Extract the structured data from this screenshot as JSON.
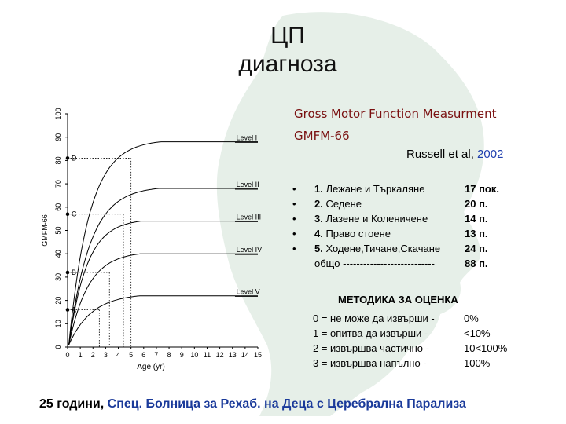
{
  "slide": {
    "title_line1": "ЦП",
    "title_line2": "диагноза",
    "gmfm_line1": "Gross Motor Function Measurment",
    "gmfm_line2": "GMFM-66",
    "ref_author": "Russell et al, ",
    "ref_year": "2002",
    "items": [
      {
        "bullet": "•",
        "num": "1.",
        "text": " Лежане и Търкаляне",
        "points": "17 пок."
      },
      {
        "bullet": "•",
        "num": "2.",
        "text": " Седене",
        "points": "20 п."
      },
      {
        "bullet": "•",
        "num": "3.",
        "text": " Лазене и Коленичене",
        "points": "14 п."
      },
      {
        "bullet": "•",
        "num": "4.",
        "text": " Право стоене",
        "points": "13 п."
      },
      {
        "bullet": "•",
        "num": "5.",
        "text": " Ходене,Тичане,Скачане",
        "points": "24 п."
      }
    ],
    "total_label": "общо ---------------------------",
    "total_points": "88 п.",
    "method_title": "МЕТОДИКА ЗА ОЦЕНКА",
    "method_rows": [
      {
        "desc": "0 = не може да извърши -",
        "val": "0%"
      },
      {
        "desc": "1 = опитва да извърши  -",
        "val": "<10%"
      },
      {
        "desc": "2 = извършва частично  -",
        "val": "10<100%"
      },
      {
        "desc": "3 = извършва напълно   -",
        "val": "100%"
      }
    ],
    "footer_age": "25 години,",
    "footer_inst": "  Спец. Болница за Рехаб. на Деца с Церебрална Парализа",
    "bg_color": "#e6efe8"
  },
  "chart_data": {
    "type": "line",
    "ylabel": "GMFM-66",
    "xlabel": "Age (yr)",
    "xlim": [
      0,
      15
    ],
    "ylim": [
      0,
      100
    ],
    "x_ticks": [
      "0",
      "1",
      "2",
      "3",
      "4",
      "5",
      "6",
      "7",
      "8",
      "9",
      "10",
      "11",
      "12",
      "13",
      "14",
      "15"
    ],
    "y_ticks": [
      "0",
      "10",
      "20",
      "30",
      "40",
      "50",
      "60",
      "70",
      "80",
      "90",
      "100"
    ],
    "series": [
      {
        "name": "Level I",
        "plateau": 88,
        "rate": 0.62
      },
      {
        "name": "Level II",
        "plateau": 68,
        "rate": 0.6
      },
      {
        "name": "Level III",
        "plateau": 54,
        "rate": 0.7
      },
      {
        "name": "Level IV",
        "plateau": 40,
        "rate": 0.65
      },
      {
        "name": "Level V",
        "plateau": 22,
        "rate": 0.55
      }
    ],
    "marker_points": [
      {
        "label": "A",
        "x": 0,
        "y": 16
      },
      {
        "label": "B",
        "x": 0,
        "y": 32
      },
      {
        "label": "C",
        "x": 0,
        "y": 57
      },
      {
        "label": "D",
        "x": 0,
        "y": 81
      }
    ],
    "dotted_lines": [
      {
        "y": 81,
        "x_end": 5
      },
      {
        "y": 57,
        "x_end": 4.4
      },
      {
        "y": 32,
        "x_end": 3.3
      },
      {
        "y": 16,
        "x_end": 2.5
      }
    ]
  }
}
